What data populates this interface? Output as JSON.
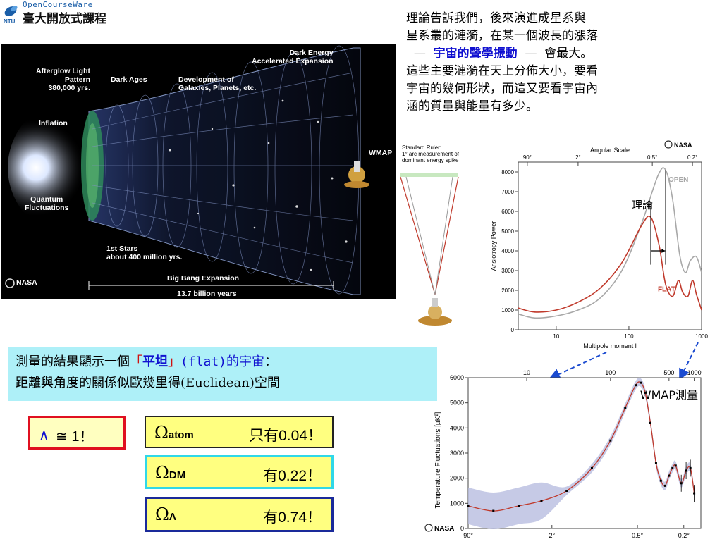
{
  "header": {
    "logo_en": "OpenCourseWare",
    "logo_zh": "臺大開放式課程",
    "logo_badge": "NTU"
  },
  "universe_image": {
    "labels": {
      "dark_energy": "Dark Energy\nAccelerated Expansion",
      "afterglow": "Afterglow Light\nPattern\n380,000 yrs.",
      "dark_ages": "Dark Ages",
      "development": "Development of\nGalaxies, Planets, etc.",
      "inflation": "Inflation",
      "wmap": "WMAP",
      "quantum": "Quantum\nFluctuations",
      "first_stars": "1st Stars\nabout 400 million yrs.",
      "nasa": "NASA",
      "big_bang": "Big Bang Expansion",
      "duration": "13.7 billion years"
    }
  },
  "intro": {
    "line1": "理論告訴我們，後來演進成星系與",
    "line2": "星系叢的漣漪，在某一個波長的漲落",
    "dash_left": "—",
    "highlight": "宇宙的聲學振動",
    "dash_right": "—",
    "line3_tail": "會最大。",
    "line4": "這些主要漣漪在天上分佈大小，要看",
    "line5": "宇宙的幾何形狀，而這又要看宇宙內",
    "line6": "涵的質量與能量有多少。"
  },
  "result": {
    "prefix": "測量的結果顯示一個",
    "bracket_open": "「",
    "flat_zh": "平坦",
    "bracket_close": "」",
    "flat_en": "(flat)的宇宙",
    "colon": "：",
    "line2": "距離與角度的關係似歐幾里得(Euclidean)空間"
  },
  "omegas": {
    "lambda_sym": "∧",
    "lambda_text": "≅ 1！",
    "atom_sub": "atom",
    "atom_val": "只有0.04！",
    "dm_sub": "DM",
    "dm_val": "有0.22！",
    "de_sub": "Λ",
    "de_val": "有0.74！",
    "omega_symbol": "Ω"
  },
  "chart_data": [
    {
      "type": "line",
      "title": "Angular Scale",
      "xlabel": "Multipole moment l",
      "ylabel": "Ansiotropy Power",
      "x_scale": "log",
      "xlim": [
        3,
        1000
      ],
      "ylim": [
        0,
        8500
      ],
      "x_ticks": [
        10,
        100,
        1000
      ],
      "y_ticks": [
        0,
        1000,
        2000,
        3000,
        4000,
        5000,
        6000,
        7000,
        8000
      ],
      "top_ticks": [
        "90°",
        "2°",
        "0.5°",
        "0.2°"
      ],
      "ruler_text": "Standard Ruler:\n1° arc measurement of\ndominant energy spike",
      "annotation": "理論",
      "nasa": "NASA",
      "series": [
        {
          "name": "OPEN",
          "color": "#a8a8a8",
          "x": [
            3,
            5,
            10,
            20,
            40,
            80,
            150,
            250,
            320,
            400,
            500,
            600,
            700,
            850,
            1000
          ],
          "values": [
            800,
            600,
            700,
            1000,
            1600,
            3000,
            5400,
            7800,
            8100,
            6600,
            3800,
            2900,
            3500,
            3700,
            2900
          ]
        },
        {
          "name": "FLAT",
          "color": "#c0392b",
          "x": [
            3,
            5,
            10,
            20,
            40,
            80,
            150,
            200,
            260,
            320,
            400,
            480,
            550,
            650,
            750,
            850,
            1000
          ],
          "values": [
            1100,
            900,
            1000,
            1400,
            2100,
            3400,
            5300,
            5700,
            4300,
            2300,
            1700,
            2500,
            1900,
            1700,
            2500,
            1800,
            1000
          ]
        }
      ]
    },
    {
      "type": "scatter",
      "title": "WMAP測量",
      "xlabel": "",
      "ylabel": "Temperature Fluctuations [µK²]",
      "x_scale": "log",
      "xlim": [
        2,
        1200
      ],
      "ylim": [
        0,
        6000
      ],
      "x_ticks": [
        10,
        100,
        500,
        1000
      ],
      "y_ticks": [
        0,
        1000,
        2000,
        3000,
        4000,
        5000,
        6000
      ],
      "bottom_ticks": [
        "90°",
        "2°",
        "0.5°",
        "0.2°"
      ],
      "nasa": "NASA",
      "series": [
        {
          "name": "",
          "color": "#000000",
          "x": [
            2,
            4,
            8,
            15,
            30,
            60,
            100,
            150,
            200,
            230,
            260,
            300,
            350,
            400,
            450,
            500,
            550,
            600,
            700,
            800,
            900,
            1000
          ],
          "values": [
            900,
            700,
            900,
            1100,
            1500,
            2400,
            3500,
            4800,
            5700,
            5800,
            5400,
            4200,
            2600,
            1900,
            1700,
            2100,
            2400,
            2500,
            1800,
            2300,
            2400,
            1400
          ]
        }
      ]
    }
  ]
}
